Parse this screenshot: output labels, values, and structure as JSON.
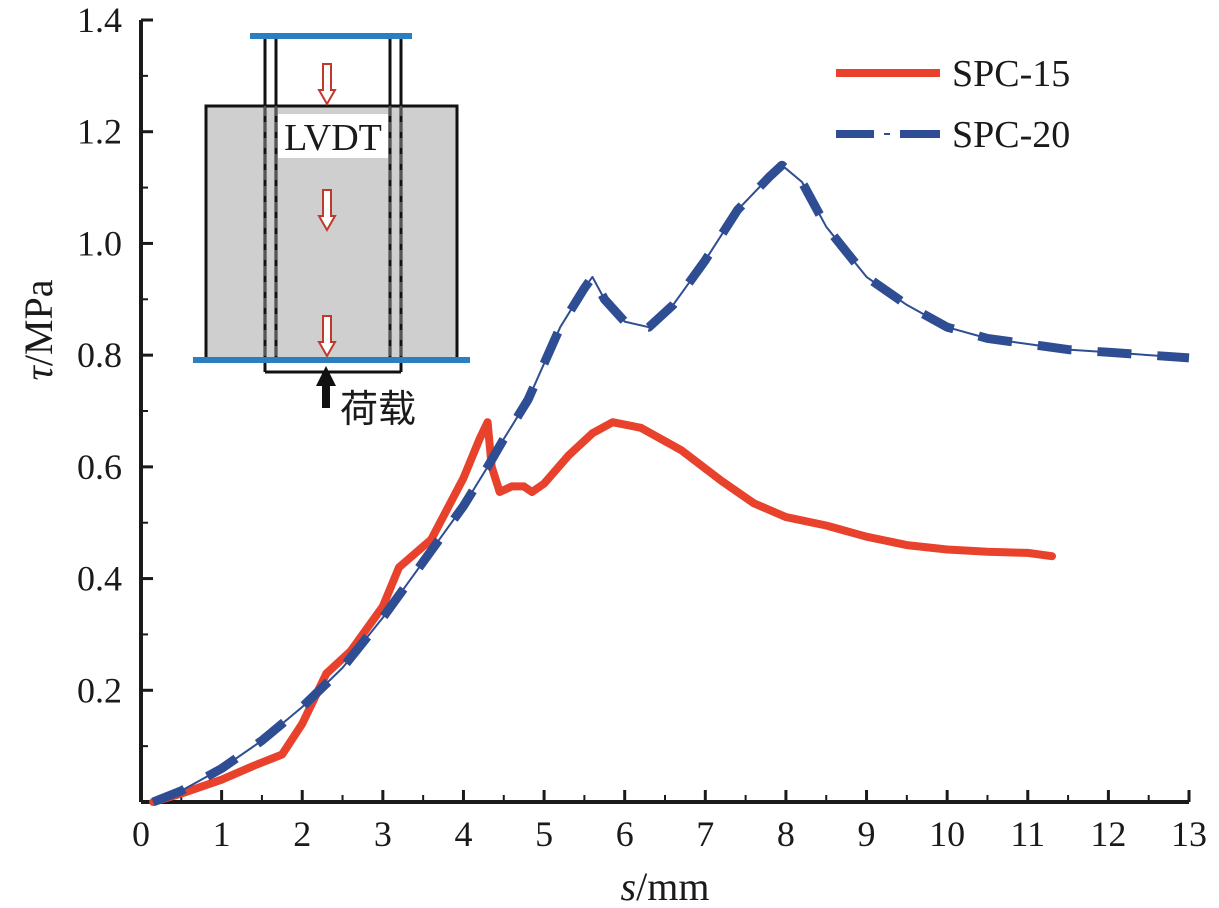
{
  "chart_data": {
    "type": "line",
    "title": "",
    "xlabel_var": "s",
    "xlabel_unit": "/mm",
    "ylabel_var": "τ",
    "ylabel_unit": "/MPa",
    "xlim": [
      0,
      13
    ],
    "ylim": [
      0,
      1.4
    ],
    "xticks": [
      "0",
      "1",
      "2",
      "3",
      "4",
      "5",
      "6",
      "7",
      "8",
      "9",
      "10",
      "11",
      "12",
      "13"
    ],
    "yticks": [
      "0.2",
      "0.4",
      "0.6",
      "0.8",
      "1.0",
      "1.2",
      "1.4"
    ],
    "grid": false,
    "legend_position": "top-right",
    "series": [
      {
        "name": "SPC-15",
        "color": "#e8412c",
        "style": "solid",
        "points": [
          [
            0.15,
            0.0
          ],
          [
            0.5,
            0.015
          ],
          [
            1.0,
            0.04
          ],
          [
            1.4,
            0.065
          ],
          [
            1.75,
            0.085
          ],
          [
            2.0,
            0.14
          ],
          [
            2.3,
            0.23
          ],
          [
            2.6,
            0.27
          ],
          [
            3.0,
            0.35
          ],
          [
            3.2,
            0.42
          ],
          [
            3.6,
            0.47
          ],
          [
            4.0,
            0.58
          ],
          [
            4.2,
            0.65
          ],
          [
            4.3,
            0.68
          ],
          [
            4.35,
            0.6
          ],
          [
            4.45,
            0.555
          ],
          [
            4.6,
            0.565
          ],
          [
            4.75,
            0.565
          ],
          [
            4.85,
            0.555
          ],
          [
            5.0,
            0.57
          ],
          [
            5.3,
            0.62
          ],
          [
            5.6,
            0.66
          ],
          [
            5.85,
            0.68
          ],
          [
            6.2,
            0.67
          ],
          [
            6.7,
            0.63
          ],
          [
            7.2,
            0.575
          ],
          [
            7.6,
            0.535
          ],
          [
            8.0,
            0.51
          ],
          [
            8.5,
            0.495
          ],
          [
            9.0,
            0.475
          ],
          [
            9.5,
            0.46
          ],
          [
            10.0,
            0.452
          ],
          [
            10.5,
            0.448
          ],
          [
            11.0,
            0.446
          ],
          [
            11.3,
            0.44
          ]
        ]
      },
      {
        "name": "SPC-20",
        "color": "#2f4d93",
        "style": "dash-dot",
        "points": [
          [
            0.15,
            0.0
          ],
          [
            0.5,
            0.02
          ],
          [
            1.0,
            0.06
          ],
          [
            1.5,
            0.11
          ],
          [
            2.0,
            0.17
          ],
          [
            2.5,
            0.24
          ],
          [
            3.0,
            0.33
          ],
          [
            3.5,
            0.43
          ],
          [
            4.0,
            0.53
          ],
          [
            4.3,
            0.6
          ],
          [
            4.5,
            0.65
          ],
          [
            4.8,
            0.72
          ],
          [
            5.2,
            0.85
          ],
          [
            5.5,
            0.92
          ],
          [
            5.6,
            0.94
          ],
          [
            5.75,
            0.9
          ],
          [
            6.0,
            0.86
          ],
          [
            6.3,
            0.85
          ],
          [
            6.6,
            0.89
          ],
          [
            7.0,
            0.97
          ],
          [
            7.4,
            1.06
          ],
          [
            7.8,
            1.12
          ],
          [
            7.95,
            1.14
          ],
          [
            8.2,
            1.11
          ],
          [
            8.5,
            1.03
          ],
          [
            9.0,
            0.94
          ],
          [
            9.5,
            0.89
          ],
          [
            10.0,
            0.85
          ],
          [
            10.5,
            0.83
          ],
          [
            11.0,
            0.82
          ],
          [
            11.5,
            0.81
          ],
          [
            12.0,
            0.805
          ],
          [
            12.5,
            0.8
          ],
          [
            13.0,
            0.795
          ]
        ]
      }
    ]
  },
  "inset": {
    "sensor_label": "LVDT",
    "load_label": "荷载"
  },
  "colors": {
    "axis": "#1a1a1a",
    "specimen_fill": "#cfcfcf",
    "plate": "#2b7fc0",
    "arrow": "#c0392b"
  }
}
